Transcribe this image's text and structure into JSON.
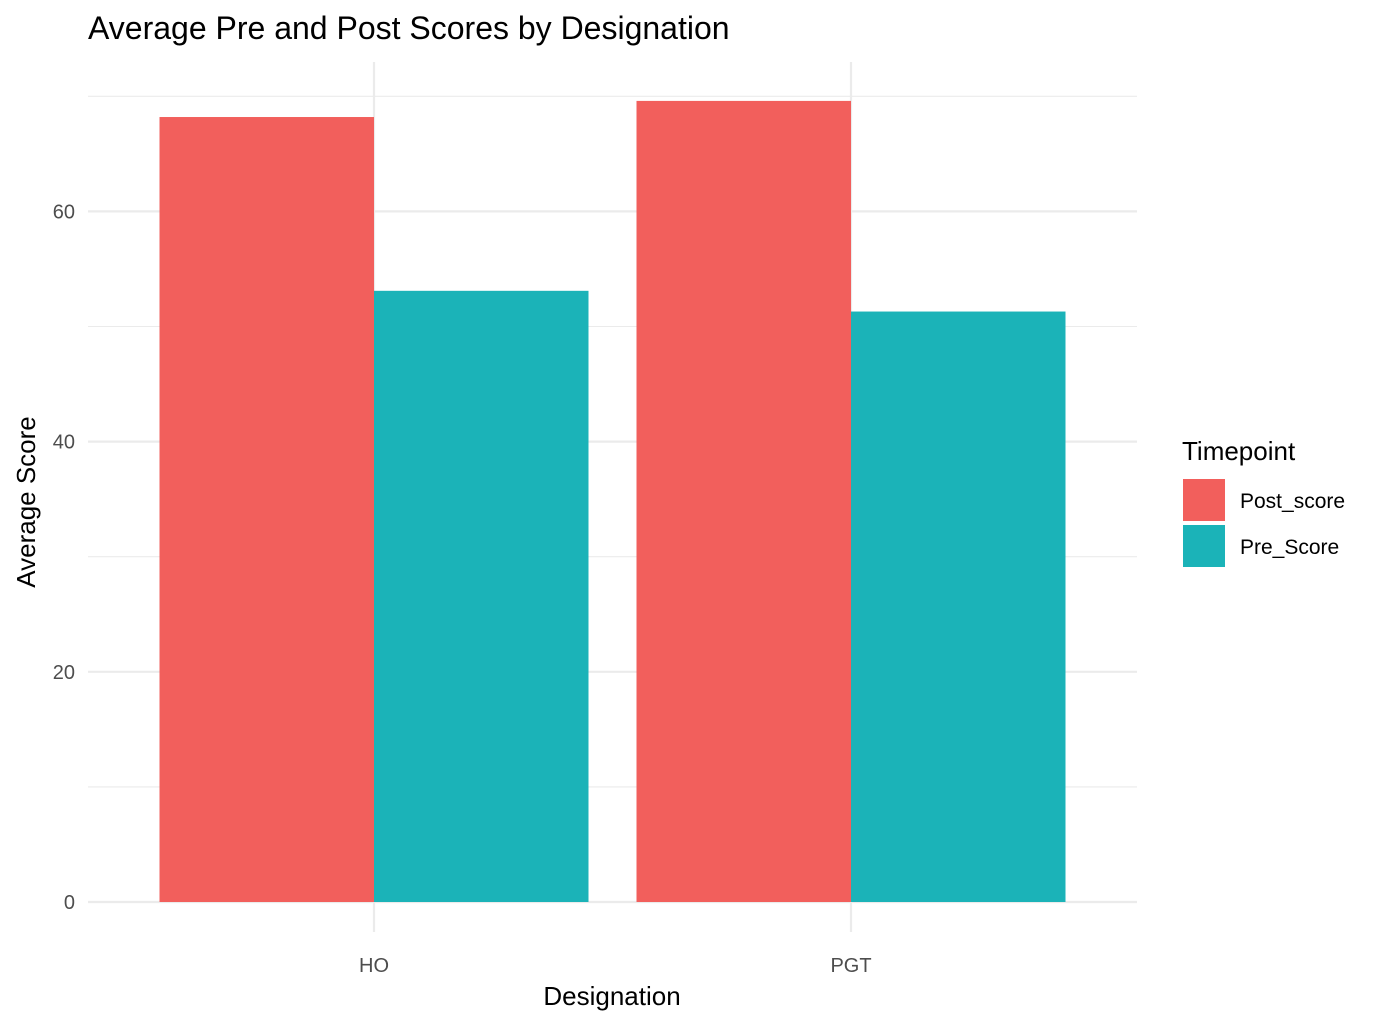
{
  "chart_data": {
    "type": "bar",
    "title": "Average Pre and Post Scores by Designation",
    "xlabel": "Designation",
    "ylabel": "Average Score",
    "categories": [
      "HO",
      "PGT"
    ],
    "series": [
      {
        "name": "Post_score",
        "values": [
          68.2,
          69.6
        ],
        "color": "#F25F5C"
      },
      {
        "name": "Pre_Score",
        "values": [
          53.1,
          51.3
        ],
        "color": "#1BB3B8"
      }
    ],
    "ylim": [
      0,
      70
    ],
    "yticks": [
      0,
      20,
      40,
      60
    ],
    "grid": true,
    "legend": {
      "title": "Timepoint",
      "position": "right"
    }
  }
}
